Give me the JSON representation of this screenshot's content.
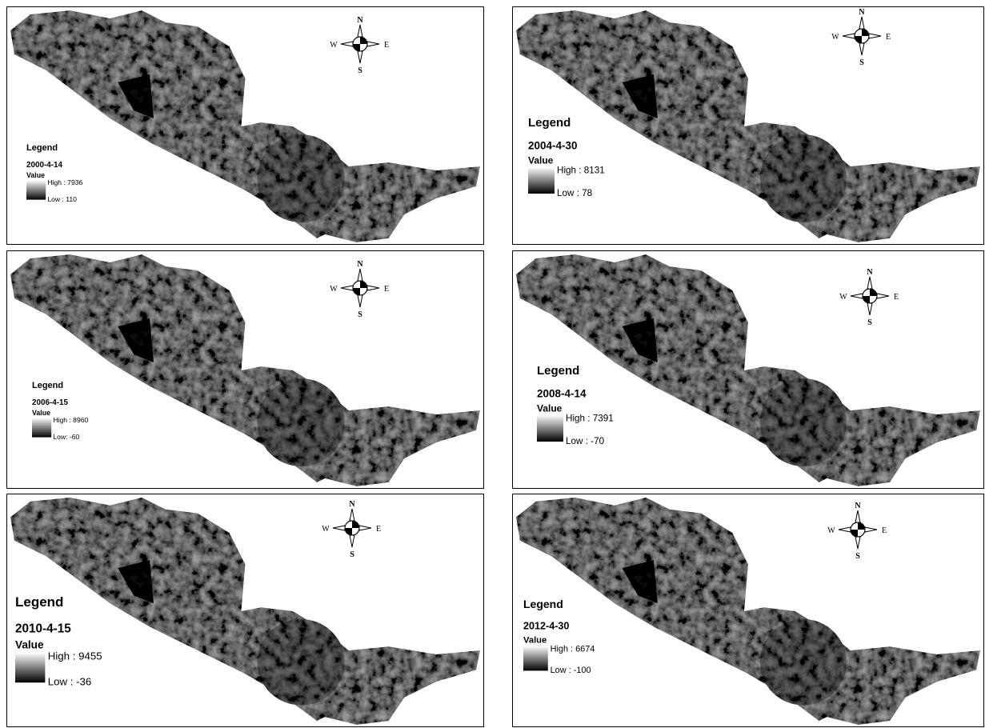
{
  "panels": [
    {
      "legend": "Legend",
      "date": "2000-4-14",
      "value_label": "Value",
      "high": "High : 7936",
      "low": "Low : 110",
      "compass": {
        "n": "N",
        "s": "S",
        "e": "E",
        "w": "W"
      }
    },
    {
      "legend": "Legend",
      "date": "2004-4-30",
      "value_label": "Value",
      "high": "High : 8131",
      "low": "Low : 78",
      "compass": {
        "n": "N",
        "s": "S",
        "e": "E",
        "w": "W"
      }
    },
    {
      "legend": "Legend",
      "date": "2006-4-15",
      "value_label": "Value",
      "high": "High : 8960",
      "low": "Low: -60",
      "compass": {
        "n": "N",
        "s": "S",
        "e": "E",
        "w": "W"
      }
    },
    {
      "legend": "Legend",
      "date": "2008-4-14",
      "value_label": "Value",
      "high": "High : 7391",
      "low": "Low : -70",
      "compass": {
        "n": "N",
        "s": "S",
        "e": "E",
        "w": "W"
      }
    },
    {
      "legend": "Legend",
      "date": "2010-4-15",
      "value_label": "Value",
      "high": "High : 9455",
      "low": "Low : -36",
      "compass": {
        "n": "N",
        "s": "S",
        "e": "E",
        "w": "W"
      }
    },
    {
      "legend": "Legend",
      "date": "2012-4-30",
      "value_label": "Value",
      "high": "High : 6674",
      "low": "Low : -100",
      "compass": {
        "n": "N",
        "s": "S",
        "e": "E",
        "w": "W"
      }
    }
  ]
}
